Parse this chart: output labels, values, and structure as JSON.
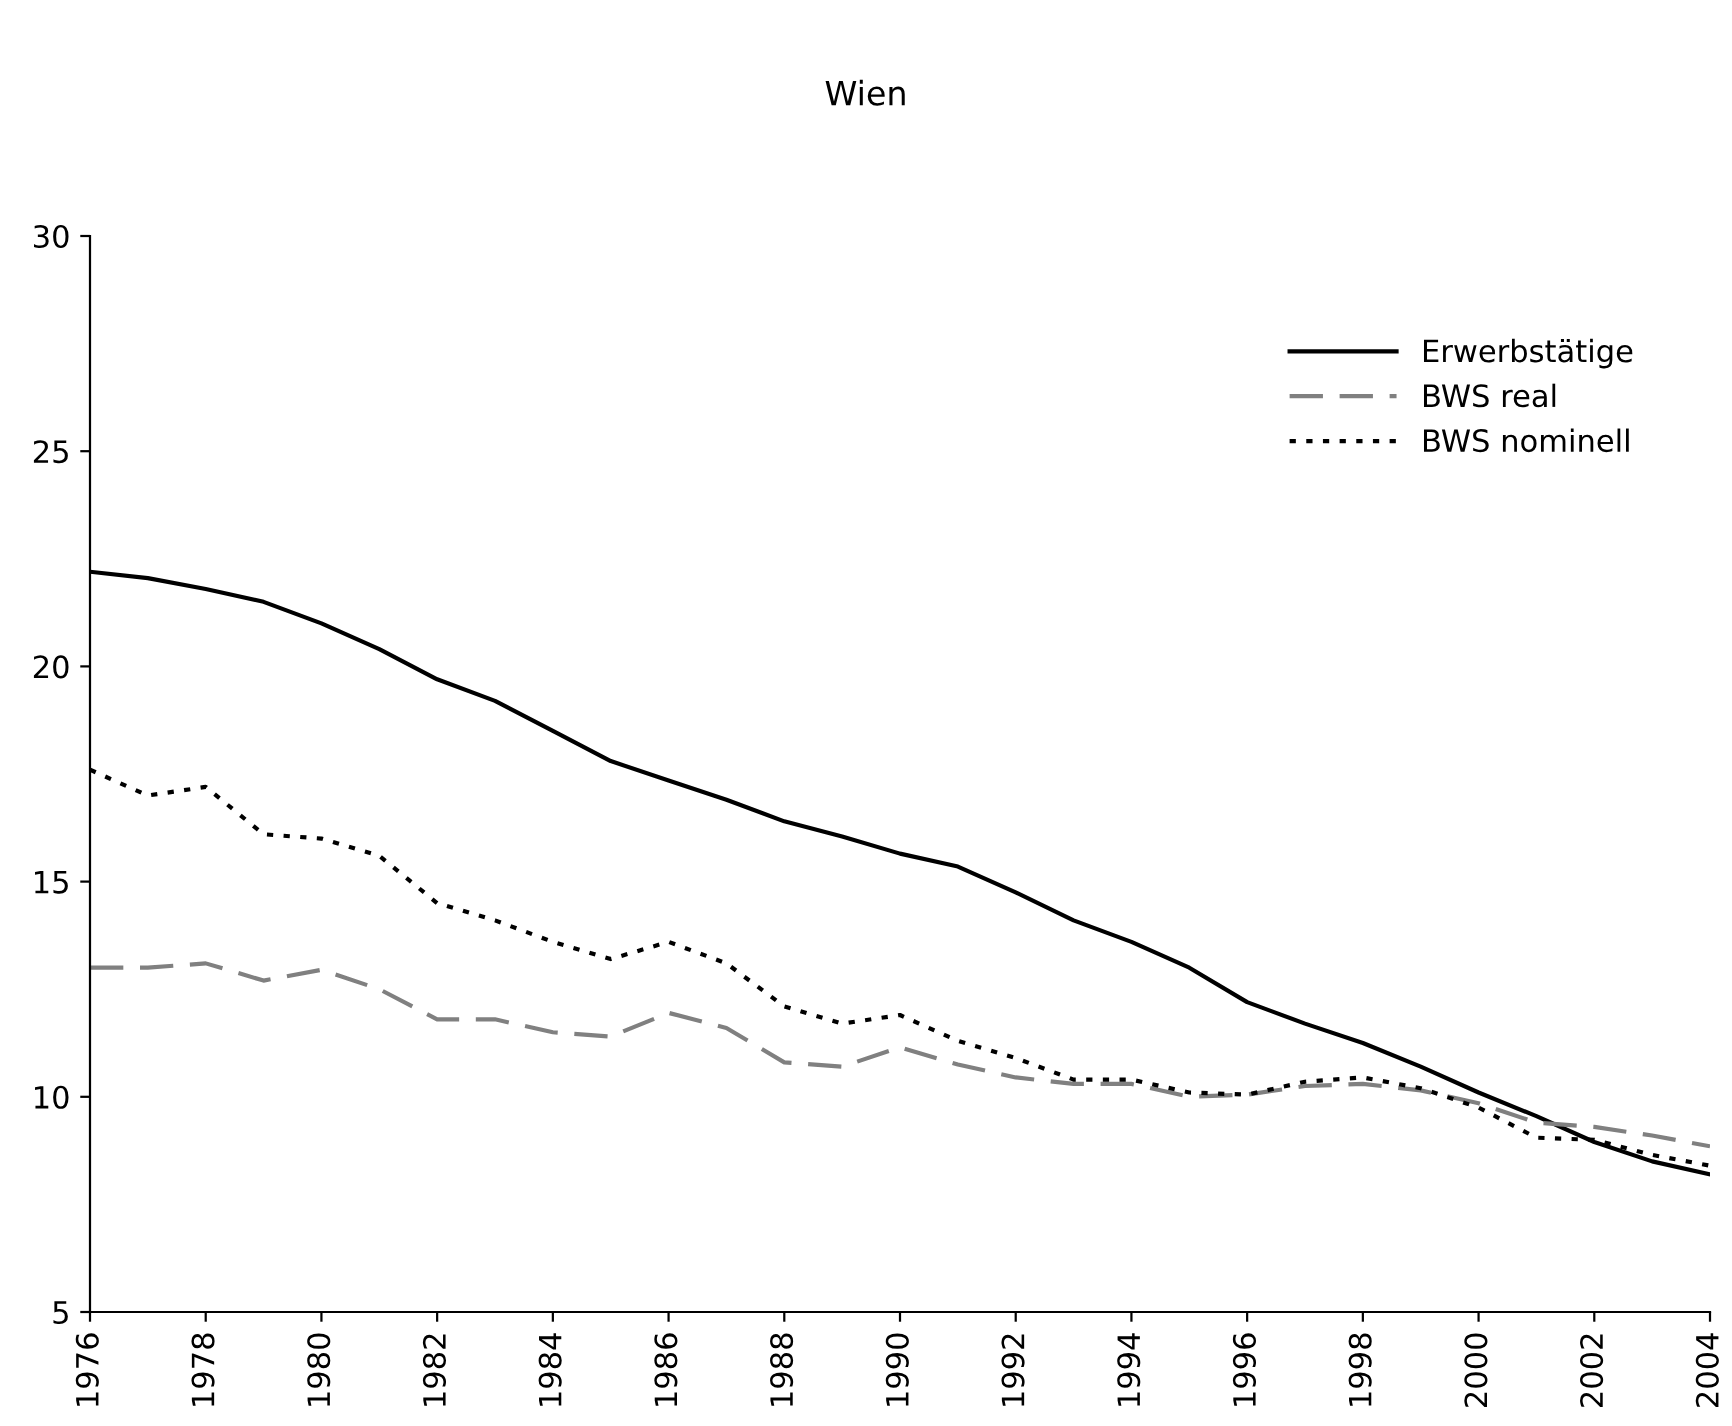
{
  "chart_data": {
    "type": "line",
    "title": "Wien",
    "x": [
      1976,
      1977,
      1978,
      1979,
      1980,
      1981,
      1982,
      1983,
      1984,
      1985,
      1986,
      1987,
      1988,
      1989,
      1990,
      1991,
      1992,
      1993,
      1994,
      1995,
      1996,
      1997,
      1998,
      1999,
      2000,
      2001,
      2002,
      2003,
      2004
    ],
    "series": [
      {
        "name": "Erwerbstätige",
        "color": "#000000",
        "line_style": "solid",
        "values": [
          22.2,
          22.05,
          21.8,
          21.5,
          21.0,
          20.4,
          19.7,
          19.2,
          18.5,
          17.8,
          17.35,
          16.9,
          16.4,
          16.05,
          15.65,
          15.35,
          14.75,
          14.1,
          13.6,
          13.0,
          12.2,
          11.7,
          11.25,
          10.7,
          10.1,
          9.55,
          8.95,
          8.5,
          8.2
        ]
      },
      {
        "name": "BWS real",
        "color": "#808080",
        "line_style": "dashed",
        "values": [
          13.0,
          13.0,
          13.1,
          12.7,
          12.95,
          12.5,
          11.8,
          11.8,
          11.5,
          11.4,
          11.95,
          11.6,
          10.8,
          10.7,
          11.15,
          10.75,
          10.45,
          10.3,
          10.3,
          10.0,
          10.05,
          10.25,
          10.3,
          10.15,
          9.85,
          9.4,
          9.3,
          9.1,
          8.85
        ]
      },
      {
        "name": "BWS nominell",
        "color": "#000000",
        "line_style": "dotted",
        "values": [
          17.6,
          17.0,
          17.2,
          16.1,
          16.0,
          15.6,
          14.5,
          14.1,
          13.6,
          13.2,
          13.6,
          13.1,
          12.1,
          11.7,
          11.9,
          11.3,
          10.9,
          10.4,
          10.4,
          10.1,
          10.05,
          10.35,
          10.45,
          10.2,
          9.75,
          9.05,
          9.0,
          8.65,
          8.4
        ]
      }
    ],
    "xlim": [
      1976,
      2004
    ],
    "xticks": [
      1976,
      1978,
      1980,
      1982,
      1984,
      1986,
      1988,
      1990,
      1992,
      1994,
      1996,
      1998,
      2000,
      2002,
      2004
    ],
    "ylim": [
      5,
      30
    ],
    "yticks": [
      5,
      10,
      15,
      20,
      25,
      30
    ],
    "grid": false,
    "legend": "top right",
    "marker": "none"
  }
}
